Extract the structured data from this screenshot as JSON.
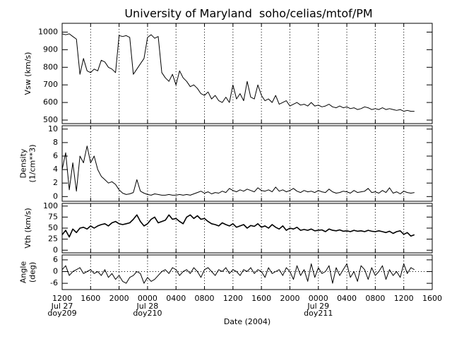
{
  "title": "University of Maryland  soho/celias/mtof/PM",
  "shared_x": {
    "xlabel": "Date (2004)",
    "xlim": [
      12,
      64
    ],
    "xticks": [
      {
        "value": 12,
        "label": "1200"
      },
      {
        "value": 16,
        "label": "1600"
      },
      {
        "value": 20,
        "label": "2000"
      },
      {
        "value": 24,
        "label": "0000"
      },
      {
        "value": 28,
        "label": "0400"
      },
      {
        "value": 32,
        "label": "0800"
      },
      {
        "value": 36,
        "label": "1200"
      },
      {
        "value": 40,
        "label": "1600"
      },
      {
        "value": 44,
        "label": "2000"
      },
      {
        "value": 48,
        "label": "0000"
      },
      {
        "value": 52,
        "label": "0400"
      },
      {
        "value": 56,
        "label": "0800"
      },
      {
        "value": 60,
        "label": "1200"
      },
      {
        "value": 64,
        "label": "1600"
      }
    ],
    "date_labels": [
      {
        "value": 12,
        "label": "Jul 27",
        "doy": "doy209"
      },
      {
        "value": 24,
        "label": "Jul 28",
        "doy": "doy210"
      },
      {
        "value": 48,
        "label": "Jul 29",
        "doy": "doy211"
      }
    ],
    "x": [
      12,
      12.5,
      13,
      13.5,
      14,
      14.5,
      15,
      15.5,
      16,
      16.5,
      17,
      17.5,
      18,
      18.5,
      19,
      19.5,
      20,
      20.5,
      21,
      21.5,
      22,
      22.5,
      23,
      23.5,
      24,
      24.5,
      25,
      25.5,
      26,
      26.5,
      27,
      27.5,
      28,
      28.5,
      29,
      29.5,
      30,
      30.5,
      31,
      31.5,
      32,
      32.5,
      33,
      33.5,
      34,
      34.5,
      35,
      35.5,
      36,
      36.5,
      37,
      37.5,
      38,
      38.5,
      39,
      39.5,
      40,
      40.5,
      41,
      41.5,
      42,
      42.5,
      43,
      43.5,
      44,
      44.5,
      45,
      45.5,
      46,
      46.5,
      47,
      47.5,
      48,
      48.5,
      49,
      49.5,
      50,
      50.5,
      51,
      51.5,
      52,
      52.5,
      53,
      53.5,
      54,
      54.5,
      55,
      55.5,
      56,
      56.5,
      57,
      57.5,
      58,
      58.5,
      59,
      59.5,
      60,
      60.5,
      61,
      61.5
    ]
  },
  "chart_data": [
    {
      "type": "line",
      "ylabel": [
        "Vsw (km/s)"
      ],
      "ylim": [
        480,
        1050
      ],
      "yticks": [
        500,
        600,
        700,
        800,
        900,
        1000
      ],
      "color": "#000000",
      "values": [
        990,
        985,
        990,
        975,
        960,
        760,
        850,
        780,
        770,
        790,
        780,
        840,
        830,
        800,
        790,
        770,
        980,
        975,
        980,
        970,
        760,
        790,
        820,
        850,
        970,
        985,
        965,
        975,
        770,
        740,
        720,
        760,
        700,
        780,
        740,
        720,
        690,
        700,
        680,
        650,
        640,
        660,
        620,
        640,
        610,
        600,
        630,
        600,
        700,
        620,
        650,
        610,
        720,
        630,
        620,
        700,
        640,
        610,
        620,
        600,
        640,
        590,
        600,
        610,
        580,
        590,
        600,
        585,
        590,
        580,
        600,
        580,
        585,
        575,
        580,
        590,
        575,
        570,
        580,
        570,
        575,
        565,
        570,
        560,
        565,
        575,
        570,
        560,
        565,
        560,
        570,
        560,
        565,
        560,
        555,
        560,
        550,
        555,
        550,
        550
      ]
    },
    {
      "type": "line",
      "ylabel": [
        "Density",
        "(1/cm**3)"
      ],
      "ylim": [
        -0.7,
        10.5
      ],
      "yticks": [
        0,
        2,
        4,
        6,
        8,
        10
      ],
      "color": "#000000",
      "values": [
        4,
        6.5,
        1,
        5,
        0.8,
        6,
        5,
        7.5,
        5,
        6,
        4,
        3,
        2.5,
        2,
        2.2,
        1.8,
        1,
        0.5,
        0.3,
        0.4,
        0.6,
        2.5,
        0.8,
        0.5,
        0.3,
        0.2,
        0.4,
        0.3,
        0.2,
        0.2,
        0.3,
        0.2,
        0.2,
        0.3,
        0.2,
        0.3,
        0.2,
        0.4,
        0.6,
        0.8,
        0.5,
        0.7,
        0.4,
        0.6,
        0.5,
        0.8,
        0.6,
        1.2,
        0.9,
        0.7,
        1.0,
        0.8,
        1.1,
        0.9,
        0.7,
        1.3,
        0.9,
        0.8,
        1.0,
        0.7,
        1.4,
        0.8,
        1.0,
        0.7,
        0.9,
        1.2,
        0.8,
        0.6,
        0.9,
        0.7,
        0.8,
        0.6,
        0.9,
        0.7,
        0.6,
        1.1,
        0.7,
        0.5,
        0.6,
        0.8,
        0.7,
        0.5,
        0.9,
        0.6,
        0.7,
        0.8,
        1.2,
        0.6,
        0.7,
        0.5,
        0.9,
        0.6,
        1.3,
        0.5,
        0.7,
        0.4,
        0.8,
        0.6,
        0.5,
        0.6
      ]
    },
    {
      "type": "line",
      "ylabel": [
        "Vth (km/s)"
      ],
      "ylim": [
        -6,
        106
      ],
      "yticks": [
        0,
        25,
        50,
        75,
        100
      ],
      "color": "#000000",
      "values": [
        35,
        45,
        30,
        48,
        40,
        50,
        52,
        48,
        55,
        50,
        55,
        58,
        60,
        55,
        62,
        65,
        60,
        58,
        60,
        62,
        70,
        80,
        65,
        55,
        60,
        70,
        75,
        62,
        65,
        68,
        80,
        70,
        72,
        65,
        60,
        75,
        80,
        72,
        78,
        70,
        72,
        65,
        60,
        58,
        55,
        62,
        58,
        55,
        60,
        52,
        55,
        58,
        50,
        56,
        54,
        60,
        52,
        55,
        50,
        58,
        52,
        48,
        55,
        45,
        50,
        48,
        52,
        45,
        47,
        45,
        48,
        44,
        45,
        46,
        42,
        48,
        45,
        44,
        46,
        43,
        44,
        42,
        45,
        43,
        44,
        42,
        45,
        43,
        42,
        44,
        42,
        40,
        43,
        38,
        42,
        44,
        36,
        40,
        32,
        35
      ]
    },
    {
      "type": "line",
      "ylabel": [
        "Angle",
        "(deg)"
      ],
      "ylim": [
        -9.2,
        8.5
      ],
      "yticks": [
        -6,
        0,
        6
      ],
      "hline": 0,
      "color": "#000000",
      "values": [
        1,
        3,
        -2,
        0,
        1,
        2,
        -1,
        0,
        1,
        -1,
        0,
        -2,
        1,
        -3,
        -1,
        -4,
        -2,
        -5,
        -6,
        -3,
        -2,
        0,
        -1,
        -6,
        -3,
        -5,
        -4,
        -2,
        0,
        1,
        -1,
        2,
        1,
        -2,
        0,
        1,
        -1,
        2,
        0,
        -3,
        1,
        2,
        0,
        -2,
        1,
        0,
        2,
        -1,
        1,
        0,
        -2,
        1,
        0,
        2,
        -1,
        1,
        0,
        -3,
        2,
        -1,
        0,
        1,
        -2,
        2,
        0,
        -4,
        3,
        -2,
        1,
        -5,
        4,
        -3,
        2,
        -1,
        0,
        3,
        -6,
        2,
        -2,
        1,
        4,
        -3,
        0,
        -5,
        3,
        1,
        -4,
        2,
        -2,
        0,
        3,
        -4,
        1,
        -2,
        0,
        -3,
        4,
        -1,
        2,
        1
      ]
    }
  ]
}
